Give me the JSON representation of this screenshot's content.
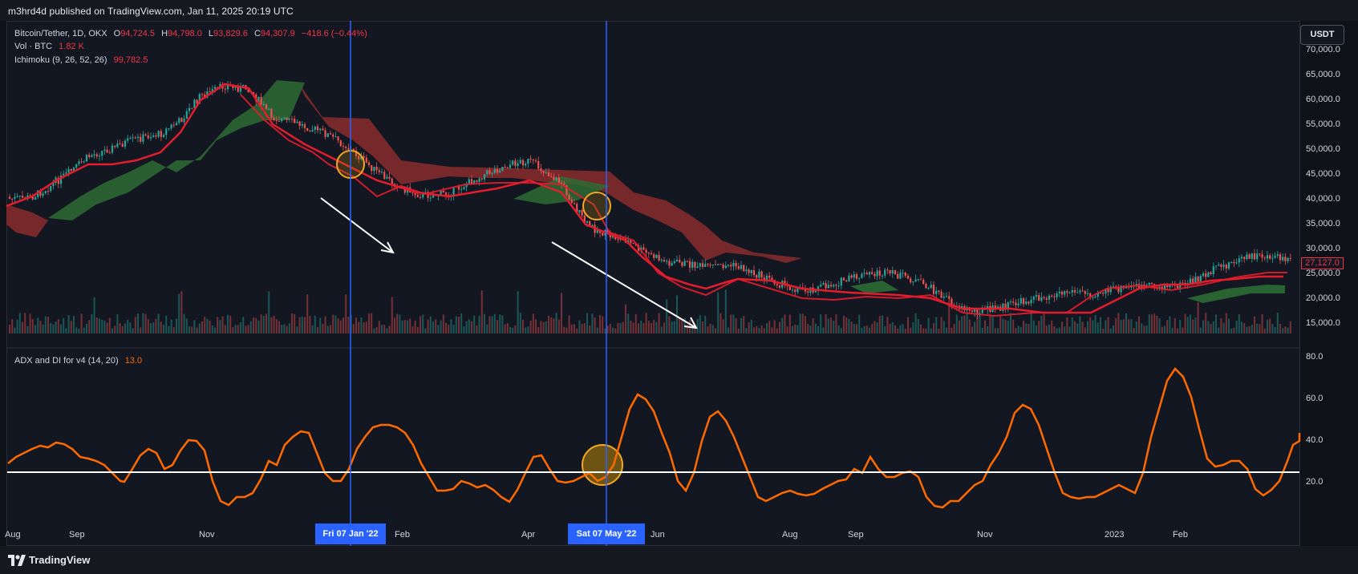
{
  "header": {
    "published": "m3hrd4d published on TradingView.com, Jan 11, 2025 20:19 UTC"
  },
  "symbol": {
    "name": "Bitcoin/Tether, 1D, OKX",
    "open_label": "O",
    "open": "94,724.5",
    "high_label": "H",
    "high": "94,798.0",
    "low_label": "L",
    "low": "93,829.6",
    "close_label": "C",
    "close": "94,307.9",
    "change": "−418.6 (−0.44%)"
  },
  "volume": {
    "label": "Vol · BTC",
    "value": "1.82 K"
  },
  "ichimoku": {
    "label": "Ichimoku (9, 26, 52, 26)",
    "value": "99,782.5"
  },
  "adx": {
    "label": "ADX and DI for v4 (14, 20)",
    "value": "13.0"
  },
  "currency_button": "USDT",
  "price_axis": [
    "70,000.0",
    "65,000.0",
    "60,000.0",
    "55,000.0",
    "50,000.0",
    "45,000.0",
    "40,000.0",
    "35,000.0",
    "30,000.0",
    "25,000.0",
    "20,000.0",
    "15,000.0"
  ],
  "last_price": "27,127.0",
  "adx_axis": [
    "80.0",
    "60.0",
    "40.0",
    "20.0"
  ],
  "time_axis": [
    "Aug",
    "Sep",
    "Nov",
    "Feb",
    "Apr",
    "Jun",
    "Aug",
    "Sep",
    "Nov",
    "2023",
    "Feb"
  ],
  "markers": [
    {
      "date": "Fri 07 Jan '22"
    },
    {
      "date": "Sat 07 May '22"
    }
  ],
  "adx_threshold": 25,
  "footer": {
    "brand": "TradingView"
  },
  "colors": {
    "bull": "#26a69a",
    "bear": "#ef5350",
    "kijun": "#e51c2c",
    "adx": "#ff6a00",
    "marker": "#2962ff",
    "cloud_bull": "#2e6b34",
    "cloud_bear": "#8a2c2c"
  }
}
